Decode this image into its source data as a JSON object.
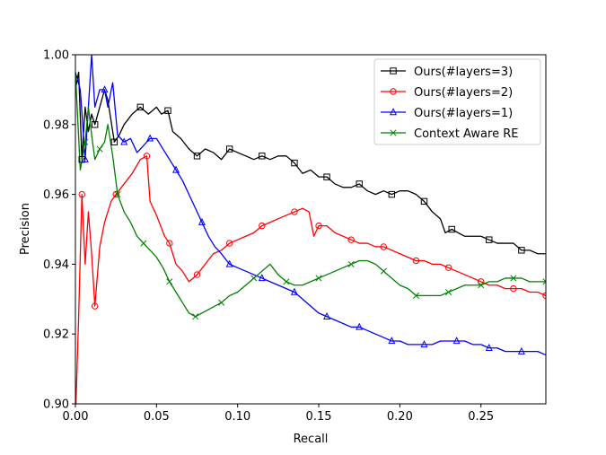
{
  "chart_data": {
    "type": "line",
    "xlabel": "Recall",
    "ylabel": "Precision",
    "xlim": [
      0.0,
      0.29
    ],
    "ylim": [
      0.9,
      1.0
    ],
    "xticks": [
      "0.00",
      "0.05",
      "0.10",
      "0.15",
      "0.20",
      "0.25"
    ],
    "yticks": [
      "0.90",
      "0.92",
      "0.94",
      "0.96",
      "0.98",
      "1.00"
    ],
    "legend_position": "top-right",
    "series": [
      {
        "name": "Ours(#layers=3)",
        "color": "#000000",
        "marker": "square",
        "x": [
          0.0,
          0.002,
          0.004,
          0.006,
          0.008,
          0.01,
          0.012,
          0.015,
          0.018,
          0.02,
          0.024,
          0.027,
          0.03,
          0.035,
          0.04,
          0.045,
          0.05,
          0.053,
          0.057,
          0.06,
          0.065,
          0.07,
          0.075,
          0.08,
          0.085,
          0.09,
          0.095,
          0.1,
          0.105,
          0.11,
          0.115,
          0.12,
          0.125,
          0.13,
          0.135,
          0.14,
          0.145,
          0.15,
          0.155,
          0.16,
          0.165,
          0.17,
          0.175,
          0.18,
          0.185,
          0.19,
          0.195,
          0.2,
          0.205,
          0.21,
          0.215,
          0.22,
          0.225,
          0.228,
          0.232,
          0.24,
          0.245,
          0.25,
          0.255,
          0.26,
          0.265,
          0.27,
          0.275,
          0.28,
          0.285,
          0.29
        ],
        "y": [
          0.99,
          0.995,
          0.97,
          0.985,
          0.978,
          0.983,
          0.98,
          0.985,
          0.99,
          0.987,
          0.975,
          0.977,
          0.98,
          0.983,
          0.985,
          0.983,
          0.985,
          0.983,
          0.984,
          0.978,
          0.976,
          0.973,
          0.971,
          0.973,
          0.972,
          0.97,
          0.973,
          0.972,
          0.971,
          0.97,
          0.971,
          0.97,
          0.971,
          0.971,
          0.969,
          0.966,
          0.967,
          0.965,
          0.965,
          0.963,
          0.962,
          0.962,
          0.963,
          0.961,
          0.96,
          0.961,
          0.96,
          0.961,
          0.961,
          0.96,
          0.958,
          0.955,
          0.953,
          0.949,
          0.95,
          0.948,
          0.948,
          0.948,
          0.947,
          0.946,
          0.946,
          0.946,
          0.944,
          0.944,
          0.943,
          0.943
        ]
      },
      {
        "name": "Ours(#layers=2)",
        "color": "#ff0000",
        "marker": "circle",
        "x": [
          0.0,
          0.002,
          0.004,
          0.006,
          0.008,
          0.01,
          0.012,
          0.015,
          0.018,
          0.022,
          0.025,
          0.03,
          0.035,
          0.04,
          0.044,
          0.046,
          0.05,
          0.055,
          0.058,
          0.062,
          0.066,
          0.07,
          0.075,
          0.08,
          0.085,
          0.09,
          0.095,
          0.1,
          0.105,
          0.11,
          0.115,
          0.12,
          0.125,
          0.13,
          0.135,
          0.14,
          0.144,
          0.147,
          0.15,
          0.155,
          0.16,
          0.165,
          0.17,
          0.175,
          0.18,
          0.185,
          0.19,
          0.195,
          0.2,
          0.205,
          0.21,
          0.215,
          0.22,
          0.225,
          0.23,
          0.235,
          0.24,
          0.245,
          0.25,
          0.255,
          0.26,
          0.265,
          0.27,
          0.275,
          0.28,
          0.285,
          0.29
        ],
        "y": [
          0.895,
          0.925,
          0.96,
          0.94,
          0.955,
          0.943,
          0.928,
          0.945,
          0.952,
          0.958,
          0.96,
          0.963,
          0.966,
          0.97,
          0.971,
          0.958,
          0.954,
          0.948,
          0.946,
          0.94,
          0.938,
          0.935,
          0.937,
          0.94,
          0.943,
          0.944,
          0.946,
          0.947,
          0.948,
          0.949,
          0.951,
          0.952,
          0.953,
          0.954,
          0.955,
          0.956,
          0.955,
          0.948,
          0.951,
          0.951,
          0.949,
          0.948,
          0.947,
          0.946,
          0.946,
          0.945,
          0.945,
          0.944,
          0.943,
          0.942,
          0.941,
          0.941,
          0.94,
          0.94,
          0.939,
          0.938,
          0.937,
          0.936,
          0.935,
          0.934,
          0.934,
          0.933,
          0.933,
          0.933,
          0.932,
          0.932,
          0.931
        ]
      },
      {
        "name": "Ours(#layers=1)",
        "color": "#0000ff",
        "marker": "triangle",
        "x": [
          0.0,
          0.003,
          0.006,
          0.01,
          0.012,
          0.015,
          0.018,
          0.02,
          0.023,
          0.026,
          0.03,
          0.034,
          0.038,
          0.042,
          0.046,
          0.05,
          0.054,
          0.058,
          0.062,
          0.066,
          0.07,
          0.074,
          0.078,
          0.082,
          0.086,
          0.09,
          0.095,
          0.1,
          0.105,
          0.11,
          0.115,
          0.12,
          0.125,
          0.13,
          0.135,
          0.14,
          0.145,
          0.15,
          0.155,
          0.16,
          0.165,
          0.17,
          0.175,
          0.18,
          0.185,
          0.19,
          0.195,
          0.2,
          0.205,
          0.21,
          0.215,
          0.22,
          0.225,
          0.23,
          0.235,
          0.24,
          0.245,
          0.25,
          0.255,
          0.26,
          0.265,
          0.27,
          0.275,
          0.28,
          0.285,
          0.29
        ],
        "y": [
          0.995,
          0.99,
          0.97,
          1.0,
          0.985,
          0.99,
          0.99,
          0.985,
          0.992,
          0.977,
          0.975,
          0.976,
          0.972,
          0.974,
          0.976,
          0.976,
          0.973,
          0.97,
          0.967,
          0.964,
          0.96,
          0.956,
          0.952,
          0.948,
          0.945,
          0.943,
          0.94,
          0.939,
          0.938,
          0.937,
          0.936,
          0.935,
          0.934,
          0.933,
          0.932,
          0.93,
          0.928,
          0.926,
          0.925,
          0.924,
          0.923,
          0.922,
          0.922,
          0.921,
          0.92,
          0.919,
          0.918,
          0.918,
          0.917,
          0.917,
          0.917,
          0.917,
          0.918,
          0.918,
          0.918,
          0.918,
          0.917,
          0.917,
          0.916,
          0.916,
          0.915,
          0.915,
          0.915,
          0.915,
          0.915,
          0.914
        ]
      },
      {
        "name": "Context Aware RE",
        "color": "#008000",
        "marker": "x",
        "x": [
          0.0,
          0.003,
          0.006,
          0.008,
          0.01,
          0.012,
          0.015,
          0.018,
          0.02,
          0.023,
          0.026,
          0.03,
          0.034,
          0.038,
          0.042,
          0.046,
          0.05,
          0.054,
          0.058,
          0.062,
          0.066,
          0.07,
          0.074,
          0.078,
          0.082,
          0.086,
          0.09,
          0.095,
          0.1,
          0.105,
          0.11,
          0.115,
          0.12,
          0.125,
          0.13,
          0.135,
          0.14,
          0.145,
          0.15,
          0.155,
          0.16,
          0.165,
          0.17,
          0.175,
          0.18,
          0.185,
          0.19,
          0.195,
          0.2,
          0.205,
          0.21,
          0.215,
          0.22,
          0.225,
          0.23,
          0.235,
          0.24,
          0.245,
          0.25,
          0.255,
          0.26,
          0.265,
          0.27,
          0.275,
          0.28,
          0.285,
          0.29
        ],
        "y": [
          0.995,
          0.967,
          0.975,
          0.985,
          0.977,
          0.97,
          0.973,
          0.975,
          0.98,
          0.971,
          0.96,
          0.955,
          0.952,
          0.948,
          0.946,
          0.944,
          0.942,
          0.939,
          0.935,
          0.932,
          0.929,
          0.926,
          0.925,
          0.926,
          0.927,
          0.928,
          0.929,
          0.931,
          0.932,
          0.934,
          0.936,
          0.938,
          0.94,
          0.937,
          0.935,
          0.934,
          0.934,
          0.935,
          0.936,
          0.937,
          0.938,
          0.939,
          0.94,
          0.941,
          0.941,
          0.94,
          0.938,
          0.936,
          0.934,
          0.933,
          0.931,
          0.931,
          0.931,
          0.931,
          0.932,
          0.933,
          0.934,
          0.934,
          0.934,
          0.935,
          0.935,
          0.936,
          0.936,
          0.936,
          0.935,
          0.935,
          0.935
        ]
      }
    ]
  }
}
